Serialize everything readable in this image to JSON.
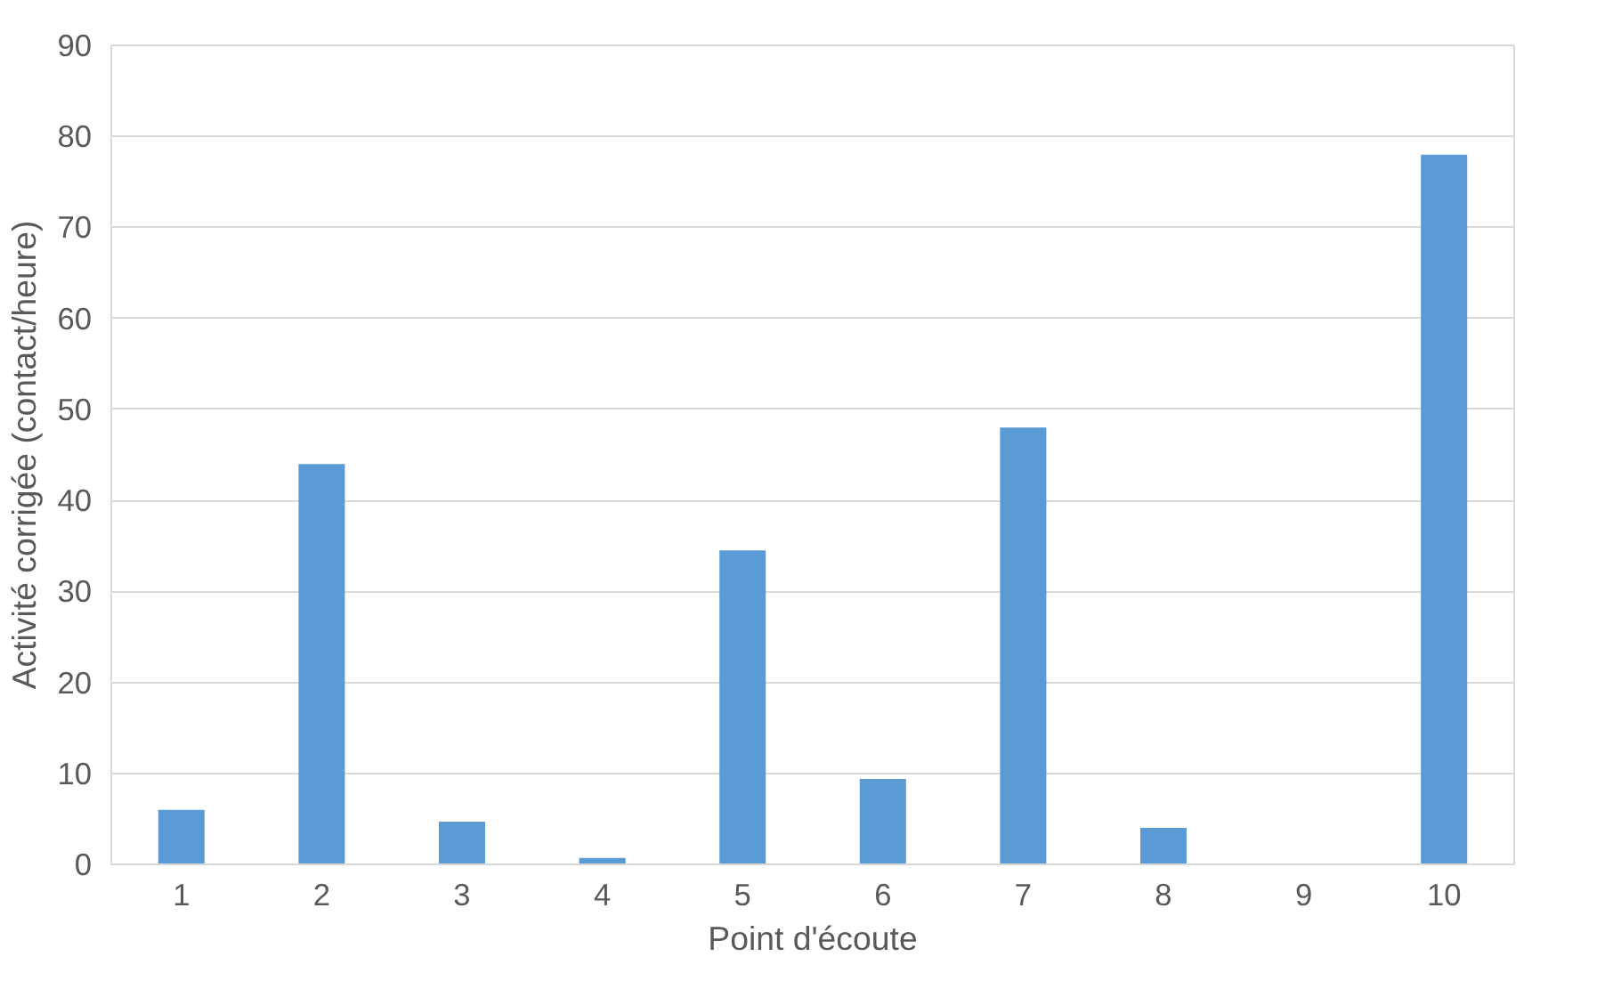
{
  "chart_data": {
    "type": "bar",
    "xlabel": "Point d'écoute",
    "ylabel": "Activité corrigée (contact/heure)",
    "categories": [
      "1",
      "2",
      "3",
      "4",
      "5",
      "6",
      "7",
      "8",
      "9",
      "10"
    ],
    "values": [
      6,
      44,
      4.7,
      0.7,
      34.5,
      9.4,
      48,
      4,
      0,
      78
    ],
    "color": "#5b9bd5",
    "ylim": [
      0,
      90
    ],
    "yticks": [
      0,
      10,
      20,
      30,
      40,
      50,
      60,
      70,
      80,
      90
    ],
    "grid": "y"
  }
}
